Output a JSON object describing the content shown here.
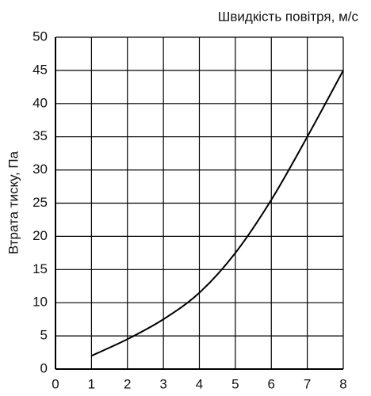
{
  "chart_data": {
    "type": "line",
    "x_label": "Швидкість повітря, м/с",
    "y_label": "Втрата тиску, Па",
    "x": [
      1,
      2,
      3,
      4,
      5,
      6,
      7,
      8
    ],
    "series": [
      {
        "color": "#000000",
        "values": [
          2,
          4.5,
          7.5,
          11.5,
          17.5,
          25.5,
          35,
          45
        ]
      }
    ],
    "xlim": [
      0,
      8
    ],
    "xticks": [
      0,
      1,
      2,
      3,
      4,
      5,
      6,
      7,
      8
    ],
    "ylim": [
      0,
      50
    ],
    "yticks": [
      0,
      5,
      10,
      15,
      20,
      25,
      30,
      35,
      40,
      45,
      50
    ],
    "grid": true
  }
}
